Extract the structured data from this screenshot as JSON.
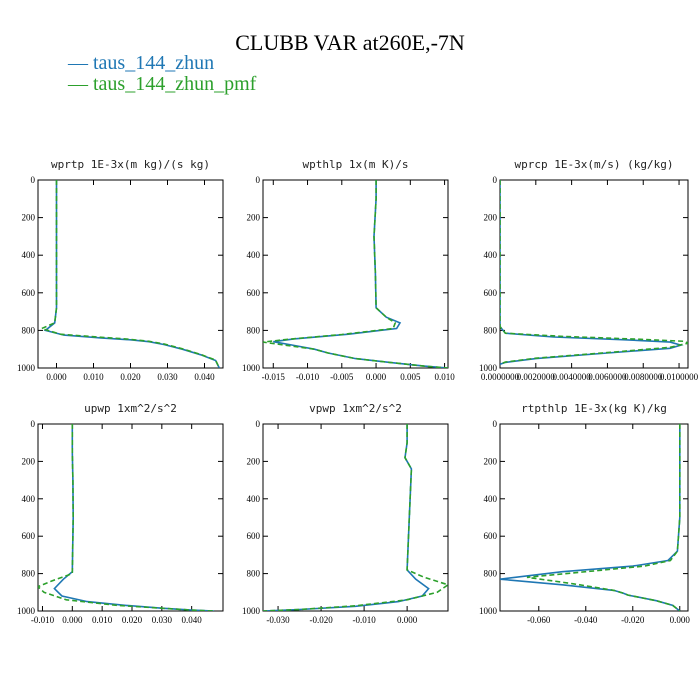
{
  "title": "CLUBB VAR at260E,-7N",
  "legend": [
    {
      "label": "taus_144_zhun",
      "color": "#1f77b4",
      "dash": "solid"
    },
    {
      "label": "taus_144_zhun_pmf",
      "color": "#2ca02c",
      "dash": "dashed"
    }
  ],
  "chart_data": [
    {
      "type": "line",
      "title": "wprtp  1E-3x(m kg)/(s kg)",
      "xlim": [
        -0.005,
        0.045
      ],
      "xticks": [
        "0.000",
        "0.010",
        "0.020",
        "0.030",
        "0.040"
      ],
      "xtick_values": [
        0,
        0.01,
        0.02,
        0.03,
        0.04
      ],
      "ylim": [
        0,
        1000
      ],
      "yticks": [
        "0",
        "200",
        "400",
        "600",
        "800",
        "1000"
      ],
      "ytick_values": [
        0,
        200,
        400,
        600,
        800,
        1000
      ],
      "y_inverted": true,
      "series": [
        {
          "name": "taus_144_zhun",
          "color": "#1f77b4",
          "dash": "solid",
          "x": [
            0,
            0,
            0,
            0,
            -0.0005,
            -0.003,
            0.002,
            0.012,
            0.02,
            0.025,
            0.029,
            0.034,
            0.039,
            0.043,
            0.044
          ],
          "y": [
            0,
            200,
            400,
            680,
            760,
            800,
            825,
            840,
            850,
            860,
            875,
            900,
            930,
            960,
            1000
          ]
        },
        {
          "name": "taus_144_zhun_pmf",
          "color": "#2ca02c",
          "dash": "dashed",
          "x": [
            0,
            0,
            0,
            0,
            -0.0005,
            -0.004,
            0.001,
            0.011,
            0.019,
            0.025,
            0.029,
            0.034,
            0.039,
            0.043,
            0.044
          ],
          "y": [
            0,
            200,
            400,
            680,
            760,
            790,
            820,
            835,
            846,
            858,
            872,
            898,
            928,
            958,
            1000
          ]
        }
      ]
    },
    {
      "type": "line",
      "title": "wpthlp  1x(m K)/s",
      "xlim": [
        -0.0165,
        0.0105
      ],
      "xticks": [
        "-0.015",
        "-0.010",
        "-0.005",
        "0.000",
        "0.005",
        "0.010"
      ],
      "xtick_values": [
        -0.015,
        -0.01,
        -0.005,
        0,
        0.005,
        0.01
      ],
      "ylim": [
        0,
        1000
      ],
      "yticks": [
        "0",
        "200",
        "400",
        "600",
        "800",
        "1000"
      ],
      "ytick_values": [
        0,
        200,
        400,
        600,
        800,
        1000
      ],
      "y_inverted": true,
      "series": [
        {
          "name": "taus_144_zhun",
          "color": "#1f77b4",
          "dash": "solid",
          "x": [
            0,
            0,
            -0.0003,
            -0.0001,
            0,
            0.0015,
            0.0035,
            0.003,
            -0.004,
            -0.012,
            -0.015,
            -0.012,
            -0.009,
            -0.007,
            -0.003,
            0.002,
            0.007,
            0.0105
          ],
          "y": [
            0,
            100,
            300,
            500,
            680,
            730,
            760,
            790,
            820,
            845,
            860,
            880,
            900,
            920,
            950,
            970,
            990,
            1000
          ]
        },
        {
          "name": "taus_144_zhun_pmf",
          "color": "#2ca02c",
          "dash": "dashed",
          "x": [
            0,
            0,
            -0.0003,
            -0.0001,
            0,
            0.0015,
            0.0028,
            0.0025,
            -0.005,
            -0.013,
            -0.0165,
            -0.013,
            -0.009,
            -0.007,
            -0.003,
            0.002,
            0.007,
            0.0105
          ],
          "y": [
            0,
            100,
            300,
            500,
            680,
            730,
            760,
            790,
            822,
            848,
            862,
            880,
            900,
            920,
            950,
            970,
            990,
            1000
          ]
        }
      ]
    },
    {
      "type": "line",
      "title": "wprcp  1E-3x(m/s) (kg/kg)",
      "xlim": [
        0,
        0.0105
      ],
      "xticks": [
        "0.0000000",
        "0.0020000",
        "0.0040000",
        "0.0060000",
        "0.0080000",
        "0.0100000"
      ],
      "xtick_values": [
        0,
        0.002,
        0.004,
        0.006,
        0.008,
        0.01
      ],
      "ylim": [
        0,
        1000
      ],
      "yticks": [
        "0",
        "200",
        "400",
        "600",
        "800",
        "1000"
      ],
      "ytick_values": [
        0,
        200,
        400,
        600,
        800,
        1000
      ],
      "y_inverted": true,
      "series": [
        {
          "name": "taus_144_zhun",
          "color": "#1f77b4",
          "dash": "solid",
          "x": [
            0,
            0,
            0,
            0.0003,
            0.003,
            0.007,
            0.0095,
            0.0101,
            0.0095,
            0.006,
            0.002,
            0.0003,
            0
          ],
          "y": [
            0,
            400,
            780,
            815,
            835,
            850,
            862,
            878,
            895,
            920,
            950,
            970,
            980
          ]
        },
        {
          "name": "taus_144_zhun_pmf",
          "color": "#2ca02c",
          "dash": "dashed",
          "x": [
            0,
            0,
            0,
            0.0003,
            0.0035,
            0.008,
            0.0103,
            0.0105,
            0.0095,
            0.006,
            0.002,
            0.0003,
            0
          ],
          "y": [
            0,
            400,
            780,
            815,
            832,
            848,
            858,
            868,
            890,
            918,
            948,
            968,
            980
          ]
        }
      ]
    },
    {
      "type": "line",
      "title": "upwp  1xm^2/s^2",
      "xlim": [
        -0.0115,
        0.0505
      ],
      "xticks": [
        "-0.010",
        "0.000",
        "0.010",
        "0.020",
        "0.030",
        "0.040"
      ],
      "xtick_values": [
        -0.01,
        0,
        0.01,
        0.02,
        0.03,
        0.04
      ],
      "ylim": [
        0,
        1000
      ],
      "yticks": [
        "0",
        "200",
        "400",
        "600",
        "800",
        "1000"
      ],
      "ytick_values": [
        0,
        200,
        400,
        600,
        800,
        1000
      ],
      "y_inverted": true,
      "series": [
        {
          "name": "taus_144_zhun",
          "color": "#1f77b4",
          "dash": "solid",
          "x": [
            0,
            0,
            0.0002,
            0.0003,
            0,
            -0.003,
            -0.006,
            -0.0035,
            0.005,
            0.018,
            0.03,
            0.04,
            0.0475
          ],
          "y": [
            0,
            150,
            300,
            500,
            790,
            830,
            880,
            920,
            950,
            970,
            985,
            995,
            1000
          ]
        },
        {
          "name": "taus_144_zhun_pmf",
          "color": "#2ca02c",
          "dash": "dashed",
          "x": [
            0,
            0,
            0.0002,
            0.0003,
            0,
            -0.007,
            -0.0115,
            -0.0095,
            -0.002,
            0.015,
            0.03,
            0.04,
            0.0475
          ],
          "y": [
            0,
            150,
            300,
            500,
            800,
            840,
            870,
            900,
            940,
            970,
            985,
            995,
            1000
          ]
        }
      ]
    },
    {
      "type": "line",
      "title": "vpwp  1xm^2/s^2",
      "xlim": [
        -0.0335,
        0.0095
      ],
      "xticks": [
        "-0.030",
        "-0.020",
        "-0.010",
        "0.000"
      ],
      "xtick_values": [
        -0.03,
        -0.02,
        -0.01,
        0
      ],
      "ylim": [
        0,
        1000
      ],
      "yticks": [
        "0",
        "200",
        "400",
        "600",
        "800",
        "1000"
      ],
      "ytick_values": [
        0,
        200,
        400,
        600,
        800,
        1000
      ],
      "y_inverted": true,
      "series": [
        {
          "name": "taus_144_zhun",
          "color": "#1f77b4",
          "dash": "solid",
          "x": [
            0,
            0,
            -0.0005,
            0.001,
            0.0005,
            0,
            0.002,
            0.005,
            0.0035,
            -0.002,
            -0.012,
            -0.025,
            -0.0335
          ],
          "y": [
            0,
            100,
            180,
            240,
            500,
            780,
            830,
            880,
            920,
            950,
            975,
            992,
            1000
          ]
        },
        {
          "name": "taus_144_zhun_pmf",
          "color": "#2ca02c",
          "dash": "dashed",
          "x": [
            0,
            0,
            -0.0005,
            0.001,
            0.0005,
            0,
            0.004,
            0.0095,
            0.007,
            0,
            -0.012,
            -0.025,
            -0.0335
          ],
          "y": [
            0,
            100,
            180,
            240,
            500,
            780,
            820,
            860,
            900,
            940,
            972,
            992,
            1000
          ]
        }
      ]
    },
    {
      "type": "line",
      "title": "rtpthlp  1E-3x(kg K)/kg",
      "xlim": [
        -0.0765,
        0.0035
      ],
      "xticks": [
        "-0.060",
        "-0.040",
        "-0.020",
        "0.000"
      ],
      "xtick_values": [
        -0.06,
        -0.04,
        -0.02,
        0
      ],
      "ylim": [
        0,
        1000
      ],
      "yticks": [
        "0",
        "200",
        "400",
        "600",
        "800",
        "1000"
      ],
      "ytick_values": [
        0,
        200,
        400,
        600,
        800,
        1000
      ],
      "y_inverted": true,
      "series": [
        {
          "name": "taus_144_zhun",
          "color": "#1f77b4",
          "dash": "solid",
          "x": [
            0,
            0,
            -0.001,
            -0.005,
            -0.02,
            -0.05,
            -0.0765,
            -0.05,
            -0.028,
            -0.024,
            -0.022,
            -0.01,
            -0.003,
            0
          ],
          "y": [
            0,
            500,
            680,
            730,
            760,
            790,
            830,
            860,
            890,
            905,
            915,
            945,
            970,
            1000
          ]
        },
        {
          "name": "taus_144_zhun_pmf",
          "color": "#2ca02c",
          "dash": "dashed",
          "x": [
            0,
            0,
            -0.001,
            -0.004,
            -0.015,
            -0.04,
            -0.065,
            -0.045,
            -0.028,
            -0.024,
            -0.022,
            -0.01,
            -0.003,
            0
          ],
          "y": [
            0,
            500,
            680,
            730,
            760,
            790,
            820,
            855,
            890,
            905,
            915,
            945,
            970,
            1000
          ]
        }
      ]
    }
  ]
}
